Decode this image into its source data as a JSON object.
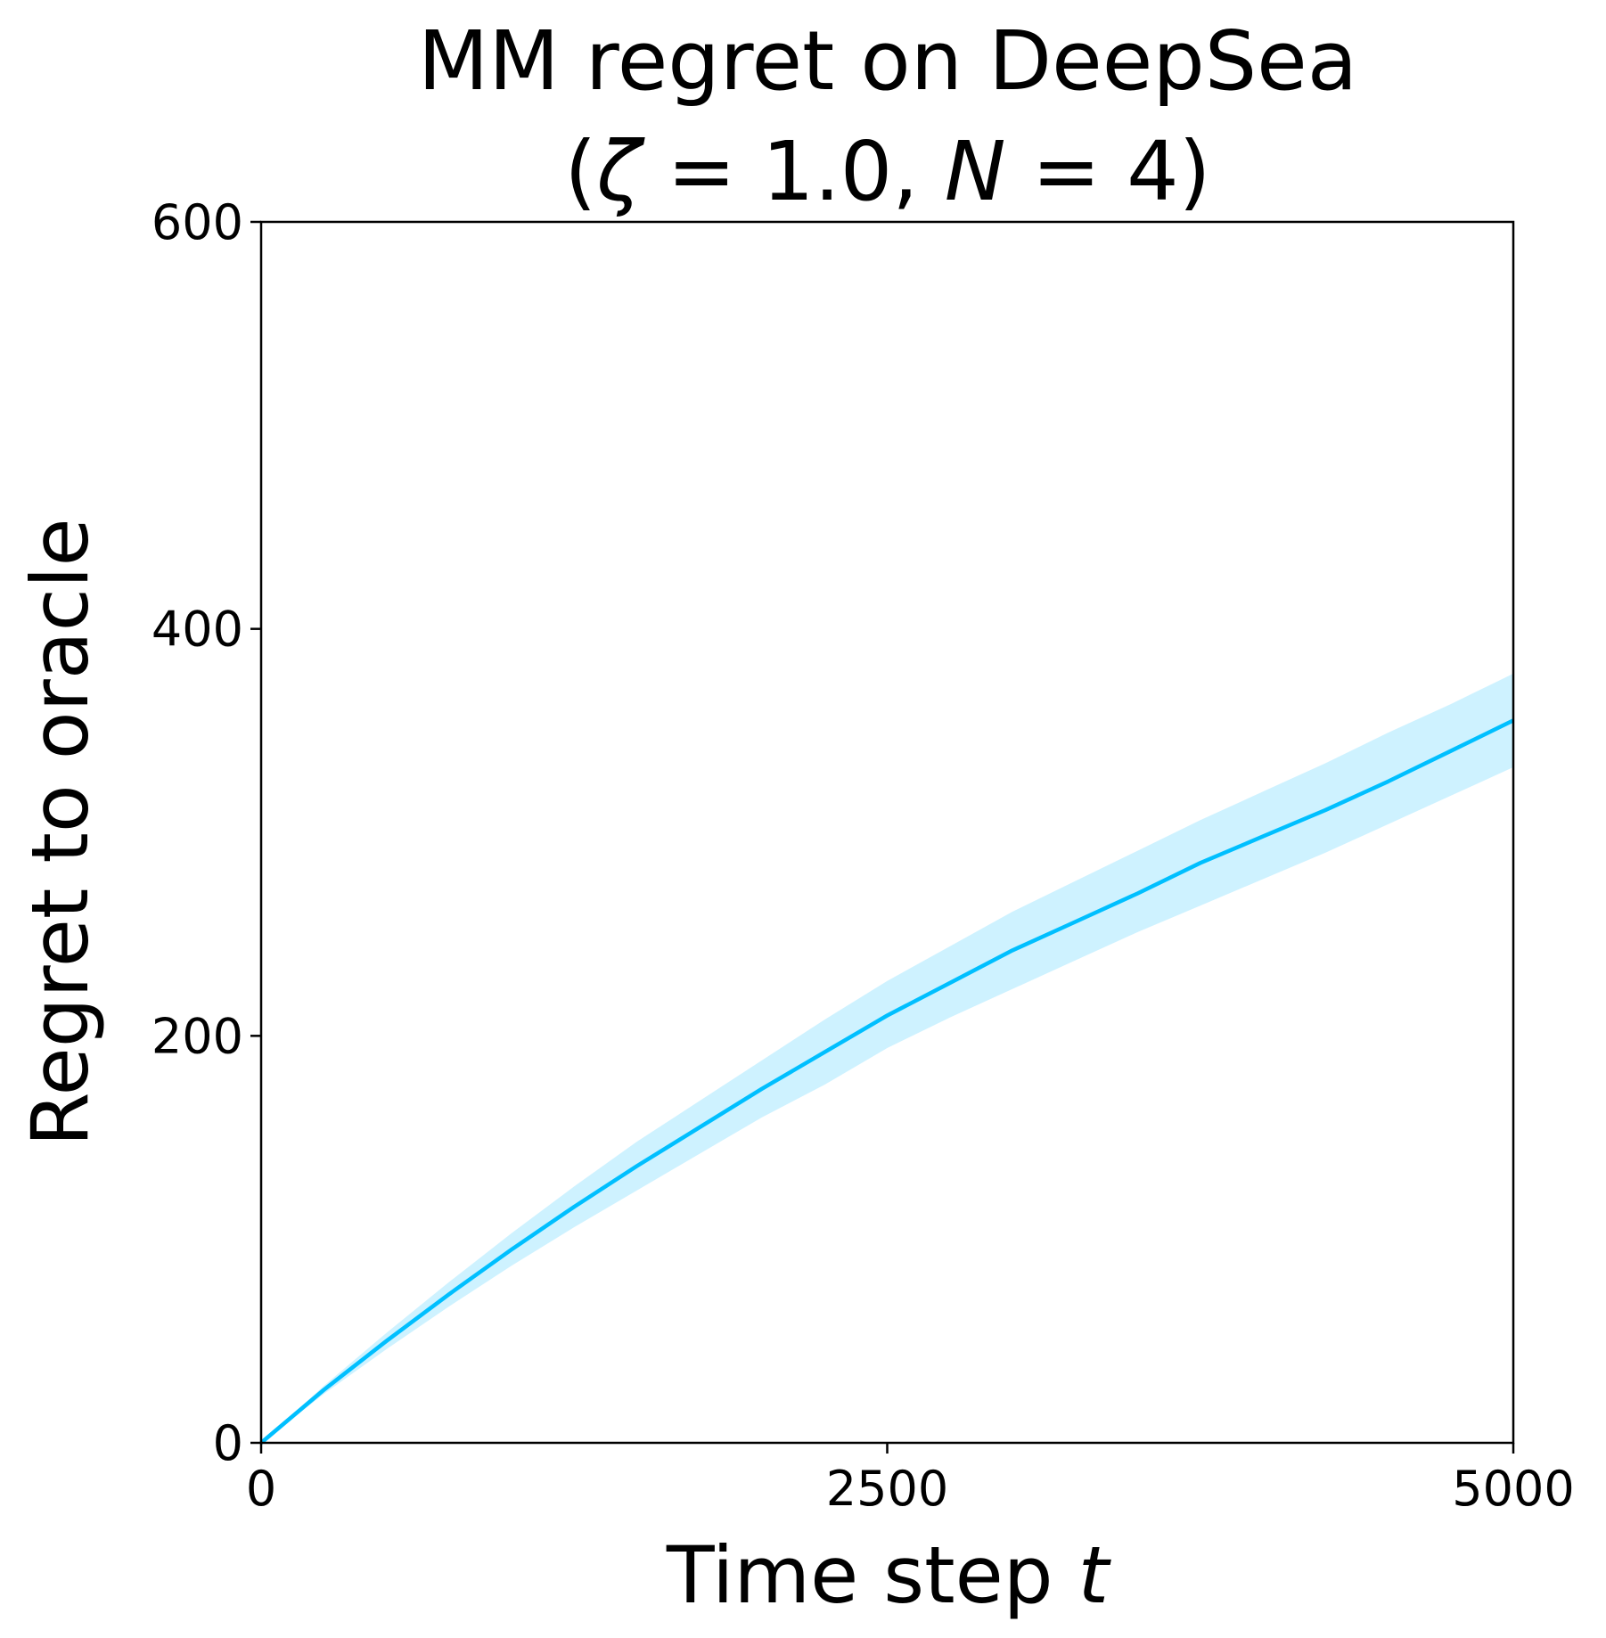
{
  "chart_data": {
    "type": "line",
    "title": "MM regret on DeepSea",
    "subtitle": {
      "open": "(",
      "zeta_symbol": "ζ",
      "zeta_rest": " = 1.0, ",
      "n_symbol": "N",
      "n_rest": " = 4)"
    },
    "xlabel": {
      "text": "Time step ",
      "var": "t"
    },
    "ylabel": "Regret to oracle",
    "xlim": [
      0,
      5000
    ],
    "ylim": [
      0,
      600
    ],
    "xticks": [
      0,
      2500,
      5000
    ],
    "yticks": [
      0,
      200,
      400,
      600
    ],
    "xtick_labels": [
      "0",
      "2500",
      "5000"
    ],
    "ytick_labels": [
      "0",
      "200",
      "400",
      "600"
    ],
    "grid": false,
    "legend": "none",
    "series": [
      {
        "color": "#00bfff",
        "band_color": "#bdeeff",
        "x": [
          0,
          250,
          500,
          750,
          1000,
          1250,
          1500,
          1750,
          2000,
          2250,
          2500,
          2750,
          3000,
          3250,
          3500,
          3750,
          4000,
          4250,
          4500,
          4750,
          5000
        ],
        "y": [
          0,
          26,
          50,
          73,
          95,
          116,
          136,
          155,
          174,
          192,
          210,
          226,
          242,
          256,
          270,
          285,
          298,
          311,
          325,
          340,
          355
        ],
        "y_lower": [
          0,
          24,
          46,
          67,
          87,
          106,
          124,
          142,
          160,
          176,
          194,
          209,
          223,
          237,
          251,
          264,
          277,
          290,
          304,
          318,
          332
        ],
        "y_upper": [
          0,
          28,
          54,
          79,
          103,
          126,
          148,
          168,
          188,
          208,
          227,
          244,
          261,
          276,
          291,
          306,
          320,
          334,
          349,
          363,
          378
        ]
      }
    ]
  }
}
